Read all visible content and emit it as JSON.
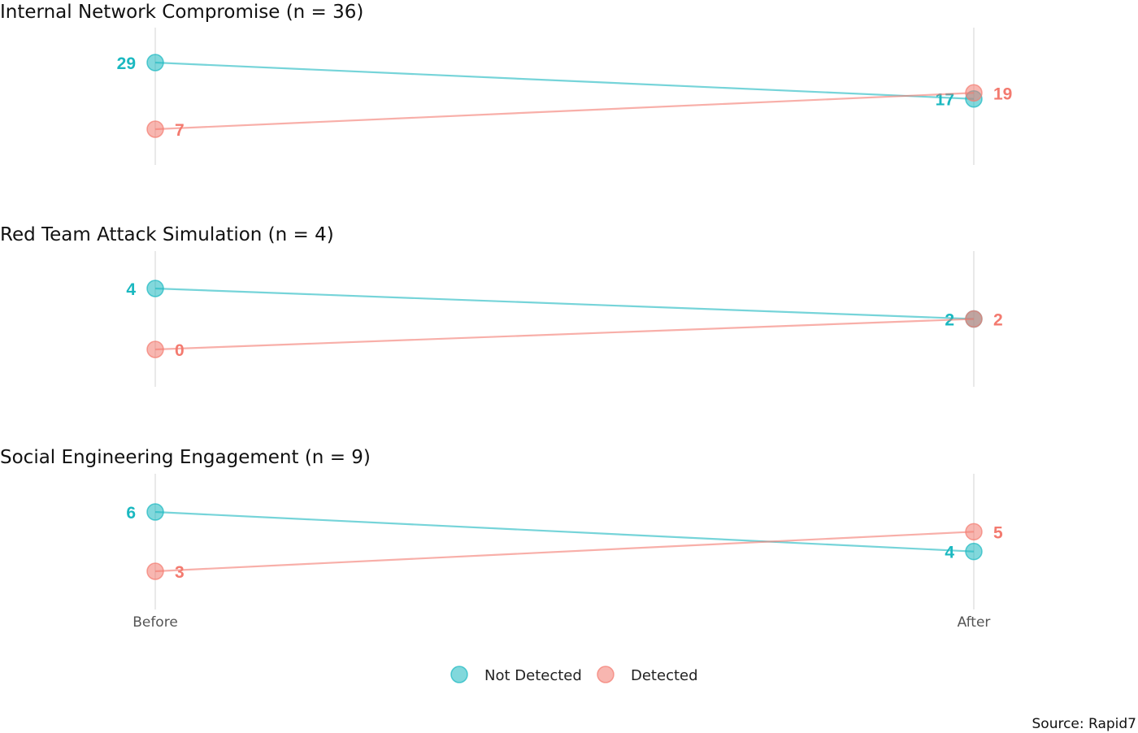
{
  "chart_data": {
    "type": "line",
    "x": [
      "Before",
      "After"
    ],
    "colors": {
      "Not Detected": "#1ab8c0",
      "Detected": "#f37a6f"
    },
    "legend": {
      "position": "bottom",
      "entries": [
        "Not Detected",
        "Detected"
      ]
    },
    "grid": false,
    "source": "Source: Rapid7",
    "panels": [
      {
        "title": "Internal Network Compromise (n = 36)",
        "ylim": [
          7,
          29
        ],
        "series": [
          {
            "name": "Not Detected",
            "values": [
              29,
              17
            ],
            "labels": [
              "29",
              "17"
            ]
          },
          {
            "name": "Detected",
            "values": [
              7,
              19
            ],
            "labels": [
              "7",
              "19"
            ]
          }
        ]
      },
      {
        "title": "Red Team Attack Simulation (n = 4)",
        "ylim": [
          0,
          4
        ],
        "series": [
          {
            "name": "Not Detected",
            "values": [
              4,
              2
            ],
            "labels": [
              "4",
              "2"
            ]
          },
          {
            "name": "Detected",
            "values": [
              0,
              2
            ],
            "labels": [
              "0",
              "2"
            ]
          }
        ]
      },
      {
        "title": "Social Engineering Engagement (n = 9)",
        "ylim": [
          3,
          6
        ],
        "series": [
          {
            "name": "Not Detected",
            "values": [
              6,
              4
            ],
            "labels": [
              "6",
              "4"
            ]
          },
          {
            "name": "Detected",
            "values": [
              3,
              5
            ],
            "labels": [
              "3",
              "5"
            ]
          }
        ]
      }
    ]
  }
}
